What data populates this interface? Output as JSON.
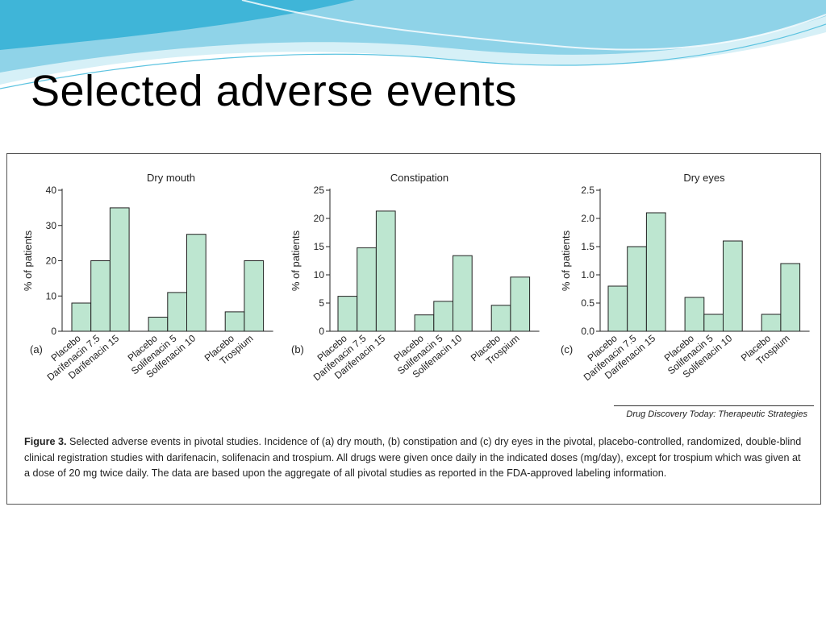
{
  "slide": {
    "title": "Selected adverse events"
  },
  "figure": {
    "source": "Drug Discovery Today: Therapeutic Strategies",
    "caption_label": "Figure 3.",
    "caption_text": "Selected adverse events in pivotal studies. Incidence of (a) dry mouth, (b) constipation and (c) dry eyes in the pivotal, placebo-controlled, randomized, double-blind clinical registration studies with darifenacin, solifenacin and trospium. All drugs were given once daily in the indicated doses (mg/day), except for trospium which was given at a dose of 20 mg twice daily. The data are based upon the aggregate of all pivotal studies as reported in the FDA-approved labeling information."
  },
  "colors": {
    "bar_fill": "#bde6d0",
    "bar_stroke": "#222222",
    "wave_light": "#d6f0f7",
    "wave_mid": "#8fd3e8",
    "wave_dark": "#3fb5d8"
  },
  "chart_data": [
    {
      "type": "bar",
      "panel": "(a)",
      "title": "Dry mouth",
      "ylabel": "% of patients",
      "ylim": [
        0,
        40
      ],
      "yticks": [
        "0",
        "10",
        "20",
        "30",
        "40"
      ],
      "yticks_values": [
        0,
        10,
        20,
        30,
        40
      ],
      "groups": [
        {
          "categories": [
            "Placebo",
            "Darifenacin 7.5",
            "Darifenacin 15"
          ],
          "values": [
            8,
            20,
            35
          ]
        },
        {
          "categories": [
            "Placebo",
            "Solifenacin 5",
            "Solifenacin 10"
          ],
          "values": [
            4,
            11,
            27.5
          ]
        },
        {
          "categories": [
            "Placebo",
            "Trospium"
          ],
          "values": [
            5.5,
            20
          ]
        }
      ]
    },
    {
      "type": "bar",
      "panel": "(b)",
      "title": "Constipation",
      "ylabel": "% of patients",
      "ylim": [
        0,
        25
      ],
      "yticks": [
        "0",
        "5",
        "10",
        "15",
        "20",
        "25"
      ],
      "yticks_values": [
        0,
        5,
        10,
        15,
        20,
        25
      ],
      "groups": [
        {
          "categories": [
            "Placebo",
            "Darifenacin 7.5",
            "Darifenacin 15"
          ],
          "values": [
            6.2,
            14.8,
            21.3
          ]
        },
        {
          "categories": [
            "Placebo",
            "Solifenacin 5",
            "Solifenacin 10"
          ],
          "values": [
            2.9,
            5.3,
            13.4
          ]
        },
        {
          "categories": [
            "Placebo",
            "Trospium"
          ],
          "values": [
            4.6,
            9.6
          ]
        }
      ]
    },
    {
      "type": "bar",
      "panel": "(c)",
      "title": "Dry eyes",
      "ylabel": "% of patients",
      "ylim": [
        0,
        2.5
      ],
      "yticks": [
        "0.0",
        "0.5",
        "1.0",
        "1.5",
        "2.0",
        "2.5"
      ],
      "yticks_values": [
        0,
        0.5,
        1,
        1.5,
        2,
        2.5
      ],
      "groups": [
        {
          "categories": [
            "Placebo",
            "Darifenacin 7.5",
            "Darifenacin 15"
          ],
          "values": [
            0.8,
            1.5,
            2.1
          ]
        },
        {
          "categories": [
            "Placebo",
            "Solifenacin 5",
            "Solifenacin 10"
          ],
          "values": [
            0.6,
            0.3,
            1.6
          ]
        },
        {
          "categories": [
            "Placebo",
            "Trospium"
          ],
          "values": [
            0.3,
            1.2
          ]
        }
      ]
    }
  ]
}
